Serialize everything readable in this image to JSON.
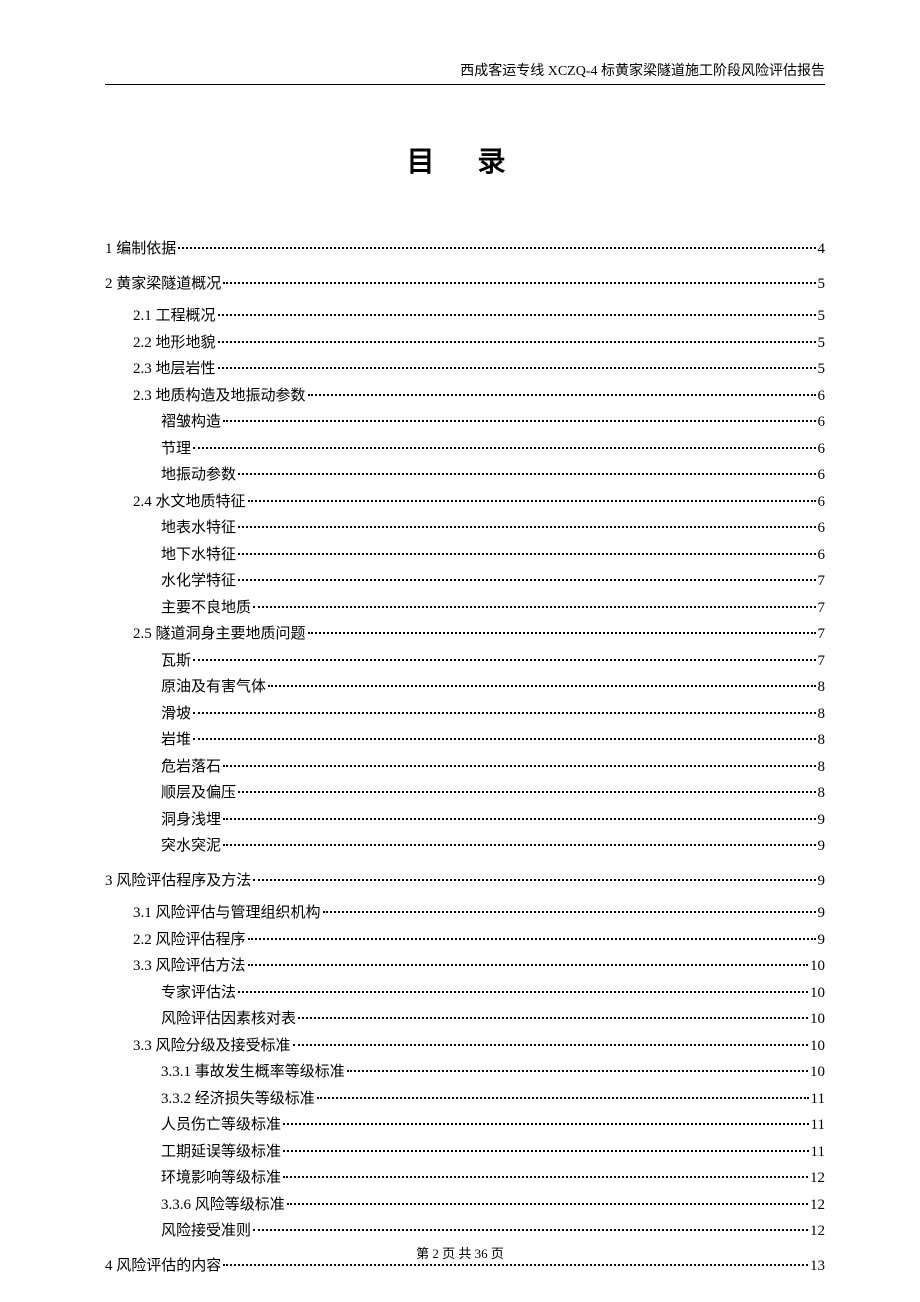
{
  "header": "西成客运专线 XCZQ-4 标黄家梁隧道施工阶段风险评估报告",
  "title": "目  录",
  "footer": "第 2 页 共 36 页",
  "toc": [
    {
      "level": 1,
      "label": "1 编制依据",
      "page": "4"
    },
    {
      "level": 1,
      "label": "2 黄家梁隧道概况",
      "page": "5"
    },
    {
      "level": 2,
      "label": "2.1 工程概况",
      "page": "5"
    },
    {
      "level": 2,
      "label": "2.2 地形地貌",
      "page": "5"
    },
    {
      "level": 2,
      "label": "2.3 地层岩性",
      "page": "5"
    },
    {
      "level": 2,
      "label": "2.3 地质构造及地振动参数",
      "page": "6"
    },
    {
      "level": 3,
      "label": "褶皱构造",
      "page": "6"
    },
    {
      "level": 3,
      "label": "节理",
      "page": "6"
    },
    {
      "level": 3,
      "label": "地振动参数",
      "page": "6"
    },
    {
      "level": 2,
      "label": "2.4 水文地质特征",
      "page": "6"
    },
    {
      "level": 3,
      "label": "地表水特征",
      "page": "6"
    },
    {
      "level": 3,
      "label": "地下水特征",
      "page": "6"
    },
    {
      "level": 3,
      "label": "水化学特征",
      "page": "7"
    },
    {
      "level": 3,
      "label": "主要不良地质",
      "page": "7"
    },
    {
      "level": 2,
      "label": "2.5 隧道洞身主要地质问题",
      "page": "7"
    },
    {
      "level": 3,
      "label": "瓦斯",
      "page": "7"
    },
    {
      "level": 3,
      "label": "原油及有害气体",
      "page": "8"
    },
    {
      "level": 3,
      "label": "滑坡",
      "page": "8"
    },
    {
      "level": 3,
      "label": "岩堆",
      "page": "8"
    },
    {
      "level": 3,
      "label": "危岩落石",
      "page": "8"
    },
    {
      "level": 3,
      "label": "顺层及偏压",
      "page": "8"
    },
    {
      "level": 3,
      "label": "洞身浅埋",
      "page": "9"
    },
    {
      "level": 3,
      "label": "突水突泥",
      "page": "9"
    },
    {
      "level": 1,
      "label": "3 风险评估程序及方法",
      "page": "9"
    },
    {
      "level": 2,
      "label": "3.1 风险评估与管理组织机构",
      "page": "9"
    },
    {
      "level": 2,
      "label": "2.2 风险评估程序",
      "page": "9"
    },
    {
      "level": 2,
      "label": "3.3 风险评估方法",
      "page": "10"
    },
    {
      "level": 3,
      "label": "专家评估法",
      "page": "10"
    },
    {
      "level": 3,
      "label": "风险评估因素核对表",
      "page": "10"
    },
    {
      "level": 2,
      "label": "3.3  风险分级及接受标准",
      "page": "10"
    },
    {
      "level": 3,
      "label": "3.3.1  事故发生概率等级标准",
      "page": "10"
    },
    {
      "level": 3,
      "label": "3.3.2  经济损失等级标准",
      "page": "11"
    },
    {
      "level": 3,
      "label": "人员伤亡等级标准",
      "page": "11"
    },
    {
      "level": 3,
      "label": "工期延误等级标准",
      "page": "11"
    },
    {
      "level": 3,
      "label": "环境影响等级标准",
      "page": "12"
    },
    {
      "level": 3,
      "label": "3.3.6  风险等级标准",
      "page": "12"
    },
    {
      "level": 3,
      "label": "风险接受准则",
      "page": "12"
    },
    {
      "level": 1,
      "label": "4 风险评估的内容",
      "page": "13"
    }
  ]
}
